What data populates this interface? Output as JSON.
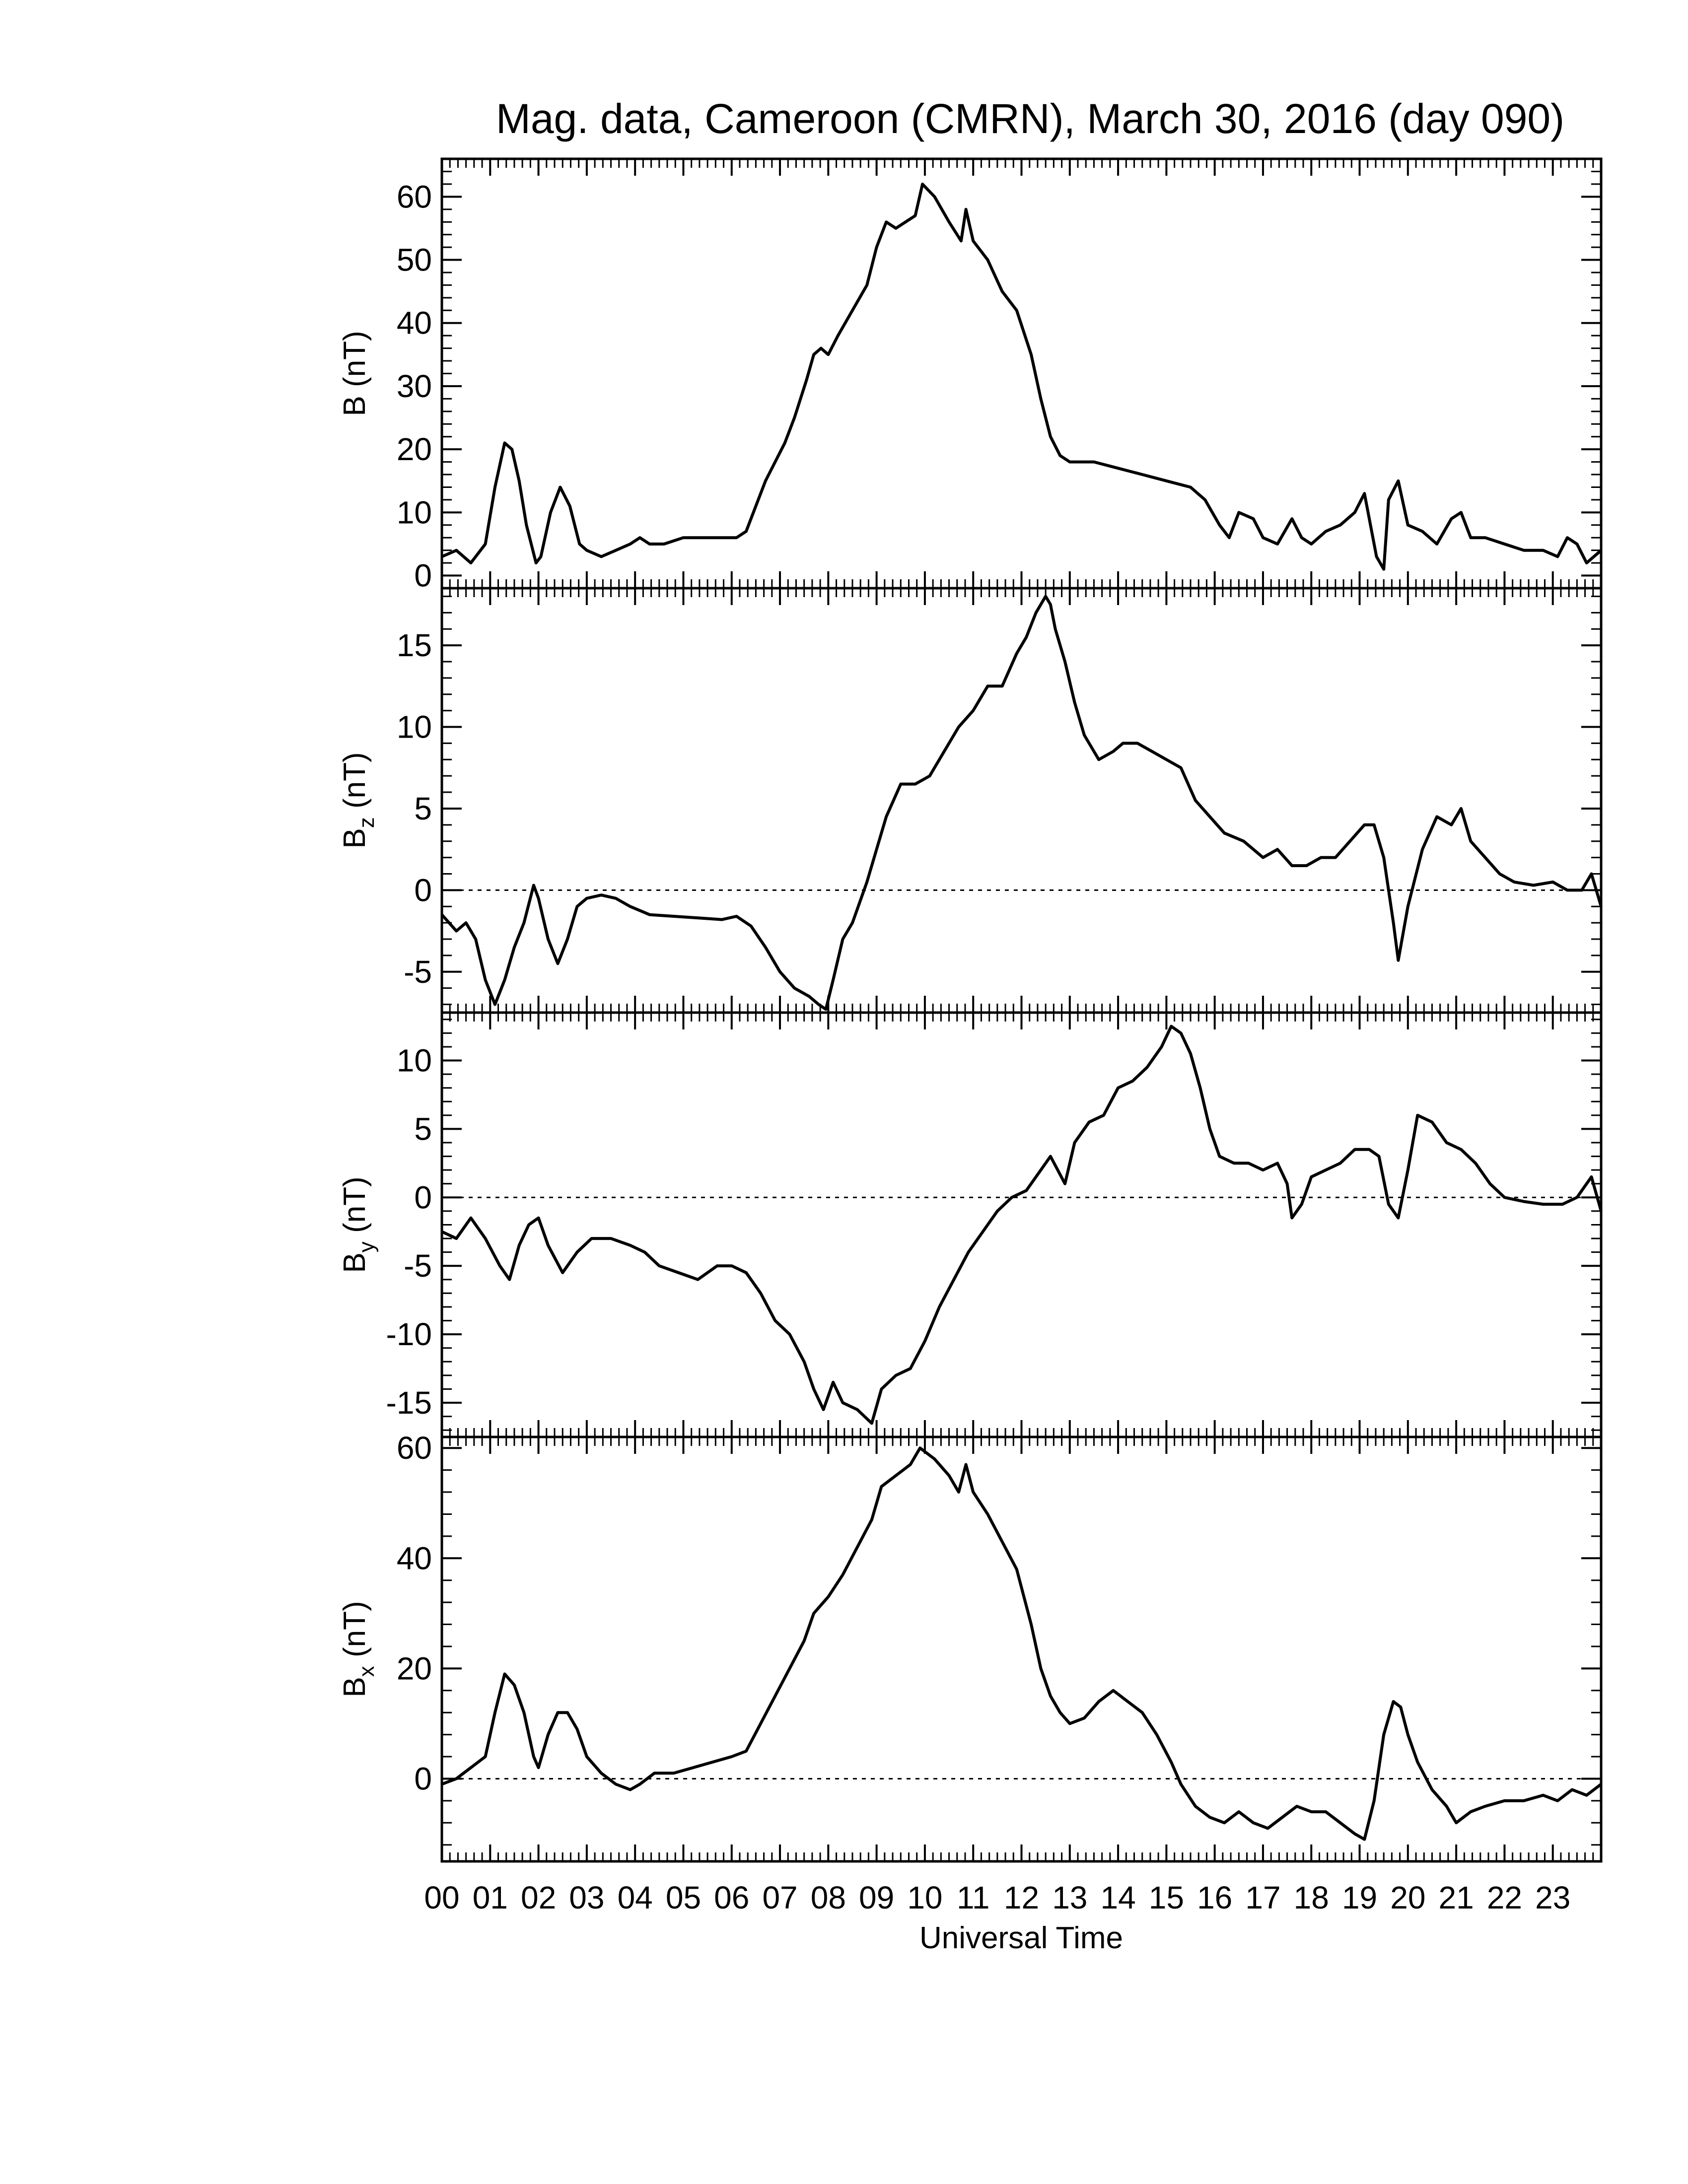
{
  "title": "Mag. data, Cameroon (CMRN), March 30, 2016 (day 090)",
  "xlabel": "Universal Time",
  "x_tick_labels": [
    "00",
    "01",
    "02",
    "03",
    "04",
    "05",
    "06",
    "07",
    "08",
    "09",
    "10",
    "11",
    "12",
    "13",
    "14",
    "15",
    "16",
    "17",
    "18",
    "19",
    "20",
    "21",
    "22",
    "23"
  ],
  "chart_data": [
    {
      "type": "line",
      "panel": "B",
      "ylabel_main": "B",
      "ylabel_sub": "",
      "ylabel_unit": " (nT)",
      "xlim": [
        0,
        24
      ],
      "ylim": [
        -2,
        66
      ],
      "yticks": [
        0,
        10,
        20,
        30,
        40,
        50,
        60
      ],
      "zero_line": false,
      "x": [
        0.0,
        0.3,
        0.6,
        0.9,
        1.1,
        1.3,
        1.45,
        1.6,
        1.75,
        1.95,
        2.05,
        2.25,
        2.45,
        2.65,
        2.85,
        3.0,
        3.3,
        3.6,
        3.9,
        4.1,
        4.3,
        4.6,
        5.0,
        5.4,
        5.8,
        6.1,
        6.3,
        6.5,
        6.7,
        6.9,
        7.1,
        7.3,
        7.55,
        7.7,
        7.85,
        8.0,
        8.2,
        8.5,
        8.8,
        9.0,
        9.2,
        9.4,
        9.6,
        9.8,
        9.95,
        10.2,
        10.5,
        10.75,
        10.85,
        11.0,
        11.3,
        11.6,
        11.9,
        12.2,
        12.4,
        12.6,
        12.8,
        13.0,
        13.5,
        14.0,
        14.5,
        15.0,
        15.5,
        15.8,
        16.1,
        16.3,
        16.5,
        16.8,
        17.0,
        17.3,
        17.6,
        17.8,
        18.0,
        18.3,
        18.6,
        18.9,
        19.1,
        19.35,
        19.5,
        19.6,
        19.8,
        20.0,
        20.3,
        20.6,
        20.9,
        21.1,
        21.3,
        21.6,
        22.0,
        22.4,
        22.8,
        23.1,
        23.3,
        23.5,
        23.7,
        24.0
      ],
      "y": [
        3,
        4,
        2,
        5,
        14,
        21,
        20,
        15,
        8,
        2,
        3,
        10,
        14,
        11,
        5,
        4,
        3,
        4,
        5,
        6,
        5,
        5,
        6,
        6,
        6,
        6,
        7,
        11,
        15,
        18,
        21,
        25,
        31,
        35,
        36,
        35,
        38,
        42,
        46,
        52,
        56,
        55,
        56,
        57,
        62,
        60,
        56,
        53,
        58,
        53,
        50,
        45,
        42,
        35,
        28,
        22,
        19,
        18,
        18,
        17,
        16,
        15,
        14,
        12,
        8,
        6,
        10,
        9,
        6,
        5,
        9,
        6,
        5,
        7,
        8,
        10,
        13,
        3,
        1,
        12,
        15,
        8,
        7,
        5,
        9,
        10,
        6,
        6,
        5,
        4,
        4,
        3,
        6,
        5,
        2,
        4
      ],
      "series": [
        {
          "values": [
            3,
            4,
            2,
            5,
            14,
            21,
            20,
            15,
            8,
            2,
            3,
            10,
            14,
            11,
            5,
            4,
            3,
            4,
            5,
            6,
            5,
            5,
            6,
            6,
            6,
            6,
            7,
            11,
            15,
            18,
            21,
            25,
            31,
            35,
            36,
            35,
            38,
            42,
            46,
            52,
            56,
            55,
            56,
            57,
            62,
            60,
            56,
            53,
            58,
            53,
            50,
            45,
            42,
            35,
            28,
            22,
            19,
            18,
            18,
            17,
            16,
            15,
            14,
            12,
            8,
            6,
            10,
            9,
            6,
            5,
            9,
            6,
            5,
            7,
            8,
            10,
            13,
            3,
            1,
            12,
            15,
            8,
            7,
            5,
            9,
            10,
            6,
            6,
            5,
            4,
            4,
            3,
            6,
            5,
            2,
            4
          ]
        }
      ]
    },
    {
      "type": "line",
      "panel": "Bz",
      "ylabel_main": "B",
      "ylabel_sub": "z",
      "ylabel_unit": " (nT)",
      "xlim": [
        0,
        24
      ],
      "ylim": [
        -7.5,
        18.5
      ],
      "yticks": [
        -5,
        0,
        5,
        10,
        15
      ],
      "zero_line": true,
      "x": [
        0.0,
        0.3,
        0.5,
        0.7,
        0.9,
        1.1,
        1.3,
        1.5,
        1.7,
        1.9,
        2.0,
        2.2,
        2.4,
        2.6,
        2.8,
        3.0,
        3.3,
        3.6,
        3.9,
        4.3,
        4.8,
        5.3,
        5.8,
        6.1,
        6.4,
        6.7,
        7.0,
        7.3,
        7.6,
        7.8,
        7.95,
        8.1,
        8.3,
        8.5,
        8.8,
        9.0,
        9.2,
        9.5,
        9.8,
        10.1,
        10.4,
        10.7,
        11.0,
        11.3,
        11.6,
        11.9,
        12.1,
        12.3,
        12.5,
        12.6,
        12.7,
        12.9,
        13.1,
        13.3,
        13.6,
        13.9,
        14.1,
        14.4,
        14.7,
        15.0,
        15.3,
        15.6,
        15.9,
        16.2,
        16.6,
        17.0,
        17.3,
        17.6,
        17.9,
        18.2,
        18.5,
        18.8,
        19.1,
        19.3,
        19.5,
        19.7,
        19.8,
        20.0,
        20.3,
        20.6,
        20.9,
        21.1,
        21.3,
        21.6,
        21.9,
        22.2,
        22.6,
        23.0,
        23.3,
        23.6,
        23.8,
        24.0
      ],
      "y": [
        -1.5,
        -2.5,
        -2.0,
        -3.0,
        -5.5,
        -7.0,
        -5.5,
        -3.5,
        -2.0,
        0.3,
        -0.5,
        -3.0,
        -4.5,
        -3.0,
        -1.0,
        -0.5,
        -0.3,
        -0.5,
        -1.0,
        -1.5,
        -1.6,
        -1.7,
        -1.8,
        -1.6,
        -2.2,
        -3.5,
        -5.0,
        -6.0,
        -6.5,
        -7.0,
        -7.3,
        -5.5,
        -3.0,
        -2.0,
        0.5,
        2.5,
        4.5,
        6.5,
        6.5,
        7.0,
        8.5,
        10.0,
        11.0,
        12.5,
        12.5,
        14.5,
        15.5,
        17.0,
        18.0,
        17.5,
        16.0,
        14.0,
        11.5,
        9.5,
        8.0,
        8.5,
        9.0,
        9.0,
        8.5,
        8.0,
        7.5,
        5.5,
        4.5,
        3.5,
        3.0,
        2.0,
        2.5,
        1.5,
        1.5,
        2.0,
        2.0,
        3.0,
        4.0,
        4.0,
        2.0,
        -2.0,
        -4.3,
        -1.0,
        2.5,
        4.5,
        4.0,
        5.0,
        3.0,
        2.0,
        1.0,
        0.5,
        0.3,
        0.5,
        0.0,
        0.0,
        1.0,
        -1.0
      ],
      "series": [
        {
          "values": [
            -1.5,
            -2.5,
            -2.0,
            -3.0,
            -5.5,
            -7.0,
            -5.5,
            -3.5,
            -2.0,
            0.3,
            -0.5,
            -3.0,
            -4.5,
            -3.0,
            -1.0,
            -0.5,
            -0.3,
            -0.5,
            -1.0,
            -1.5,
            -1.6,
            -1.7,
            -1.8,
            -1.6,
            -2.2,
            -3.5,
            -5.0,
            -6.0,
            -6.5,
            -7.0,
            -7.3,
            -5.5,
            -3.0,
            -2.0,
            0.5,
            2.5,
            4.5,
            6.5,
            6.5,
            7.0,
            8.5,
            10.0,
            11.0,
            12.5,
            12.5,
            14.5,
            15.5,
            17.0,
            18.0,
            17.5,
            16.0,
            14.0,
            11.5,
            9.5,
            8.0,
            8.5,
            9.0,
            9.0,
            8.5,
            8.0,
            7.5,
            5.5,
            4.5,
            3.5,
            3.0,
            2.0,
            2.5,
            1.5,
            1.5,
            2.0,
            2.0,
            3.0,
            4.0,
            4.0,
            2.0,
            -2.0,
            -4.3,
            -1.0,
            2.5,
            4.5,
            4.0,
            5.0,
            3.0,
            2.0,
            1.0,
            0.5,
            0.3,
            0.5,
            0.0,
            0.0,
            1.0,
            -1.0
          ]
        }
      ]
    },
    {
      "type": "line",
      "panel": "By",
      "ylabel_main": "B",
      "ylabel_sub": "y",
      "ylabel_unit": " (nT)",
      "xlim": [
        0,
        24
      ],
      "ylim": [
        -17.5,
        13.5
      ],
      "yticks": [
        -15,
        -10,
        -5,
        0,
        5,
        10
      ],
      "zero_line": true,
      "x": [
        0.0,
        0.3,
        0.6,
        0.9,
        1.2,
        1.4,
        1.6,
        1.8,
        2.0,
        2.2,
        2.5,
        2.8,
        3.1,
        3.5,
        3.9,
        4.2,
        4.5,
        4.9,
        5.3,
        5.7,
        6.0,
        6.3,
        6.6,
        6.9,
        7.2,
        7.5,
        7.7,
        7.9,
        8.1,
        8.3,
        8.6,
        8.9,
        9.1,
        9.4,
        9.7,
        10.0,
        10.3,
        10.6,
        10.9,
        11.2,
        11.5,
        11.8,
        12.1,
        12.3,
        12.6,
        12.9,
        13.1,
        13.4,
        13.7,
        14.0,
        14.3,
        14.6,
        14.9,
        15.1,
        15.3,
        15.5,
        15.7,
        15.9,
        16.1,
        16.4,
        16.7,
        17.0,
        17.3,
        17.5,
        17.6,
        17.8,
        18.0,
        18.3,
        18.6,
        18.9,
        19.2,
        19.4,
        19.6,
        19.8,
        20.0,
        20.2,
        20.5,
        20.8,
        21.1,
        21.4,
        21.7,
        22.0,
        22.4,
        22.8,
        23.2,
        23.5,
        23.8,
        24.0
      ],
      "y": [
        -2.5,
        -3.0,
        -1.5,
        -3.0,
        -5.0,
        -6.0,
        -3.5,
        -2.0,
        -1.5,
        -3.5,
        -5.5,
        -4.0,
        -3.0,
        -3.0,
        -3.5,
        -4.0,
        -5.0,
        -5.5,
        -6.0,
        -5.0,
        -5.0,
        -5.5,
        -7.0,
        -9.0,
        -10.0,
        -12.0,
        -14.0,
        -15.5,
        -13.5,
        -15.0,
        -15.5,
        -16.5,
        -14.0,
        -13.0,
        -12.5,
        -10.5,
        -8.0,
        -6.0,
        -4.0,
        -2.5,
        -1.0,
        0.0,
        0.5,
        1.5,
        3.0,
        1.0,
        4.0,
        5.5,
        6.0,
        8.0,
        8.5,
        9.5,
        11.0,
        12.5,
        12.0,
        10.5,
        8.0,
        5.0,
        3.0,
        2.5,
        2.5,
        2.0,
        2.5,
        1.0,
        -1.5,
        -0.5,
        1.5,
        2.0,
        2.5,
        3.5,
        3.5,
        3.0,
        -0.5,
        -1.5,
        2.0,
        6.0,
        5.5,
        4.0,
        3.5,
        2.5,
        1.0,
        0.0,
        -0.3,
        -0.5,
        -0.5,
        0.0,
        1.5,
        -1.0
      ],
      "series": [
        {
          "values": [
            -2.5,
            -3.0,
            -1.5,
            -3.0,
            -5.0,
            -6.0,
            -3.5,
            -2.0,
            -1.5,
            -3.5,
            -5.5,
            -4.0,
            -3.0,
            -3.0,
            -3.5,
            -4.0,
            -5.0,
            -5.5,
            -6.0,
            -5.0,
            -5.0,
            -5.5,
            -7.0,
            -9.0,
            -10.0,
            -12.0,
            -14.0,
            -15.5,
            -13.5,
            -15.0,
            -15.5,
            -16.5,
            -14.0,
            -13.0,
            -12.5,
            -10.5,
            -8.0,
            -6.0,
            -4.0,
            -2.5,
            -1.0,
            0.0,
            0.5,
            1.5,
            3.0,
            1.0,
            4.0,
            5.5,
            6.0,
            8.0,
            8.5,
            9.5,
            11.0,
            12.5,
            12.0,
            10.5,
            8.0,
            5.0,
            3.0,
            2.5,
            2.5,
            2.0,
            2.5,
            1.0,
            -1.5,
            -0.5,
            1.5,
            2.0,
            2.5,
            3.5,
            3.5,
            3.0,
            -0.5,
            -1.5,
            2.0,
            6.0,
            5.5,
            4.0,
            3.5,
            2.5,
            1.0,
            0.0,
            -0.3,
            -0.5,
            -0.5,
            0.0,
            1.5,
            -1.0
          ]
        }
      ]
    },
    {
      "type": "line",
      "panel": "Bx",
      "ylabel_main": "B",
      "ylabel_sub": "x",
      "ylabel_unit": " (nT)",
      "xlim": [
        0,
        24
      ],
      "ylim": [
        -15,
        62
      ],
      "yticks": [
        0,
        20,
        40,
        60
      ],
      "zero_line": true,
      "x": [
        0.0,
        0.3,
        0.6,
        0.9,
        1.1,
        1.3,
        1.5,
        1.7,
        1.9,
        2.0,
        2.2,
        2.4,
        2.6,
        2.8,
        3.0,
        3.3,
        3.6,
        3.9,
        4.1,
        4.4,
        4.8,
        5.2,
        5.6,
        6.0,
        6.3,
        6.6,
        6.9,
        7.2,
        7.5,
        7.7,
        8.0,
        8.3,
        8.6,
        8.9,
        9.1,
        9.4,
        9.7,
        9.9,
        10.2,
        10.5,
        10.7,
        10.85,
        11.0,
        11.3,
        11.6,
        11.9,
        12.2,
        12.4,
        12.6,
        12.8,
        13.0,
        13.3,
        13.6,
        13.9,
        14.2,
        14.5,
        14.8,
        15.1,
        15.3,
        15.6,
        15.9,
        16.2,
        16.5,
        16.8,
        17.1,
        17.4,
        17.7,
        18.0,
        18.3,
        18.6,
        18.9,
        19.1,
        19.3,
        19.5,
        19.7,
        19.85,
        20.0,
        20.2,
        20.5,
        20.8,
        21.0,
        21.3,
        21.6,
        22.0,
        22.4,
        22.8,
        23.1,
        23.4,
        23.7,
        24.0
      ],
      "y": [
        -1,
        0,
        2,
        4,
        12,
        19,
        17,
        12,
        4,
        2,
        8,
        12,
        12,
        9,
        4,
        1,
        -1,
        -2,
        -1,
        1,
        1,
        2,
        3,
        4,
        5,
        10,
        15,
        20,
        25,
        30,
        33,
        37,
        42,
        47,
        53,
        55,
        57,
        60,
        58,
        55,
        52,
        57,
        52,
        48,
        43,
        38,
        28,
        20,
        15,
        12,
        10,
        11,
        14,
        16,
        14,
        12,
        8,
        3,
        -1,
        -5,
        -7,
        -8,
        -6,
        -8,
        -9,
        -7,
        -5,
        -6,
        -6,
        -8,
        -10,
        -11,
        -4,
        8,
        14,
        13,
        8,
        3,
        -2,
        -5,
        -8,
        -6,
        -5,
        -4,
        -4,
        -3,
        -4,
        -2,
        -3,
        -1
      ],
      "series": [
        {
          "values": [
            -1,
            0,
            2,
            4,
            12,
            19,
            17,
            12,
            4,
            2,
            8,
            12,
            12,
            9,
            4,
            1,
            -1,
            -2,
            -1,
            1,
            1,
            2,
            3,
            4,
            5,
            10,
            15,
            20,
            25,
            30,
            33,
            37,
            42,
            47,
            53,
            55,
            57,
            60,
            58,
            55,
            52,
            57,
            52,
            48,
            43,
            38,
            28,
            20,
            15,
            12,
            10,
            11,
            14,
            16,
            14,
            12,
            8,
            3,
            -1,
            -5,
            -7,
            -8,
            -6,
            -8,
            -9,
            -7,
            -5,
            -6,
            -6,
            -8,
            -10,
            -11,
            -4,
            8,
            14,
            13,
            8,
            3,
            -2,
            -5,
            -8,
            -6,
            -5,
            -4,
            -4,
            -3,
            -4,
            -2,
            -3,
            -1
          ]
        }
      ]
    }
  ]
}
